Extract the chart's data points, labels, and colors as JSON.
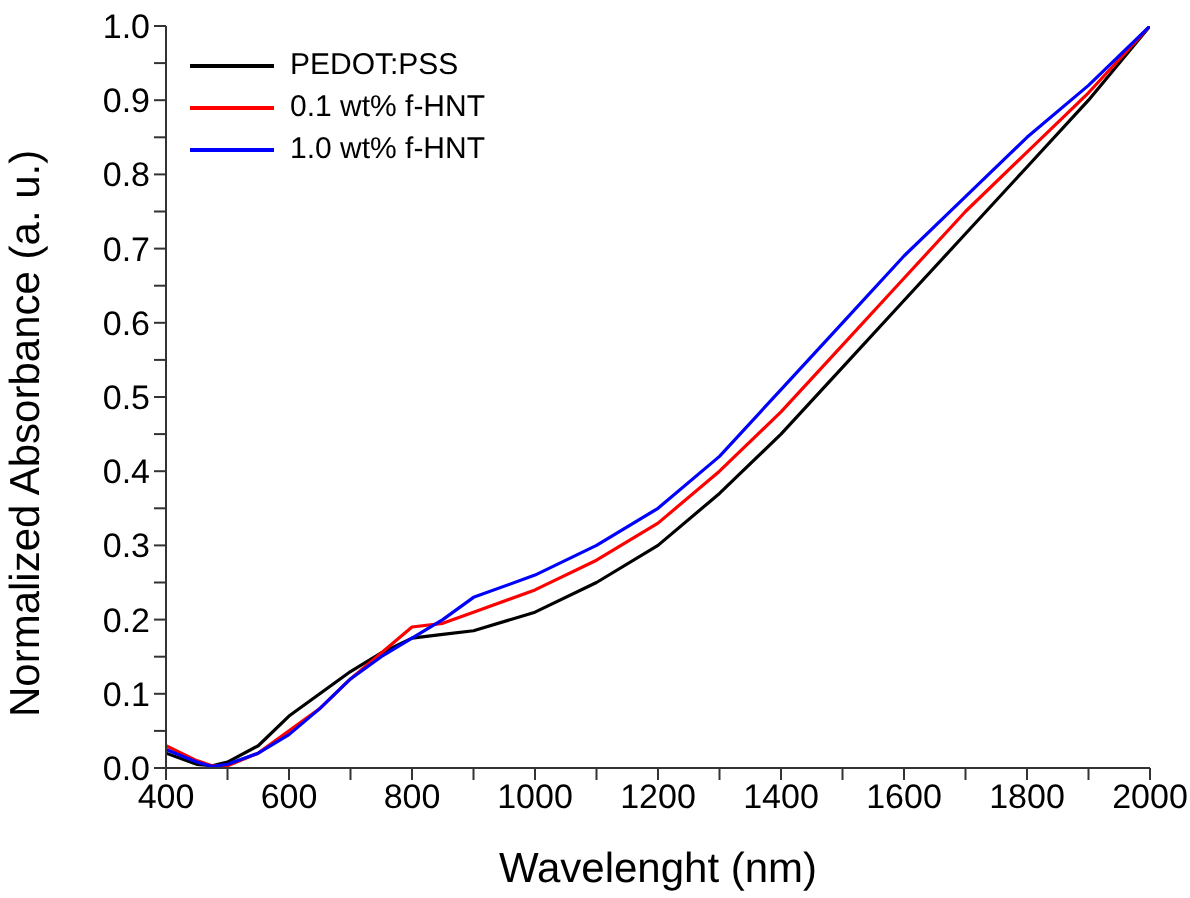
{
  "chart_data": {
    "type": "line",
    "xlabel": "Wavelenght (nm)",
    "ylabel": "Normalized Absorbance (a. u.)",
    "x": [
      400,
      450,
      475,
      500,
      550,
      600,
      650,
      700,
      750,
      800,
      850,
      900,
      1000,
      1100,
      1200,
      1300,
      1400,
      1500,
      1600,
      1700,
      1800,
      1900,
      2000
    ],
    "series": [
      {
        "name": "PEDOT:PSS",
        "color": "#000000",
        "values": [
          0.02,
          0.005,
          0.003,
          0.008,
          0.03,
          0.07,
          0.1,
          0.13,
          0.155,
          0.175,
          0.18,
          0.185,
          0.21,
          0.25,
          0.3,
          0.37,
          0.45,
          0.54,
          0.63,
          0.72,
          0.81,
          0.9,
          1.0
        ]
      },
      {
        "name": "0.1 wt% f-HNT",
        "color": "#ff0000",
        "values": [
          0.03,
          0.01,
          0.003,
          0.003,
          0.02,
          0.05,
          0.08,
          0.12,
          0.155,
          0.19,
          0.195,
          0.21,
          0.24,
          0.28,
          0.33,
          0.4,
          0.48,
          0.57,
          0.66,
          0.75,
          0.83,
          0.91,
          1.0
        ]
      },
      {
        "name": "1.0 wt% f-HNT",
        "color": "#0000ff",
        "values": [
          0.025,
          0.008,
          0.002,
          0.005,
          0.02,
          0.045,
          0.08,
          0.12,
          0.15,
          0.175,
          0.2,
          0.23,
          0.26,
          0.3,
          0.35,
          0.42,
          0.51,
          0.6,
          0.69,
          0.77,
          0.85,
          0.92,
          1.0
        ]
      }
    ],
    "xlim": [
      400,
      2000
    ],
    "xticks": [
      400,
      {
        "value": 500,
        "label": null
      },
      600,
      {
        "value": 700,
        "label": null
      },
      800,
      {
        "value": 900,
        "label": null
      },
      1000,
      {
        "value": 1100,
        "label": null
      },
      1200,
      {
        "value": 1300,
        "label": null
      },
      1400,
      {
        "value": 1500,
        "label": null
      },
      1600,
      {
        "value": 1700,
        "label": null
      },
      1800,
      {
        "value": 1900,
        "label": null
      },
      2000
    ],
    "ylim": [
      0,
      1
    ],
    "yticks": [
      {
        "value": 0,
        "label": "0.0"
      },
      {
        "value": 0.05,
        "label": null
      },
      0.1,
      {
        "value": 0.15,
        "label": null
      },
      0.2,
      {
        "value": 0.25,
        "label": null
      },
      0.3,
      {
        "value": 0.35,
        "label": null
      },
      0.4,
      {
        "value": 0.45,
        "label": null
      },
      0.5,
      {
        "value": 0.55,
        "label": null
      },
      0.6,
      {
        "value": 0.65,
        "label": null
      },
      0.7,
      {
        "value": 0.75,
        "label": null
      },
      0.8,
      {
        "value": 0.85,
        "label": null
      },
      0.9,
      {
        "value": 0.95,
        "label": null
      },
      {
        "value": 1,
        "label": "1.0"
      }
    ],
    "grid": false,
    "legend": "top left",
    "marker": "none",
    "line_style": "solid"
  }
}
